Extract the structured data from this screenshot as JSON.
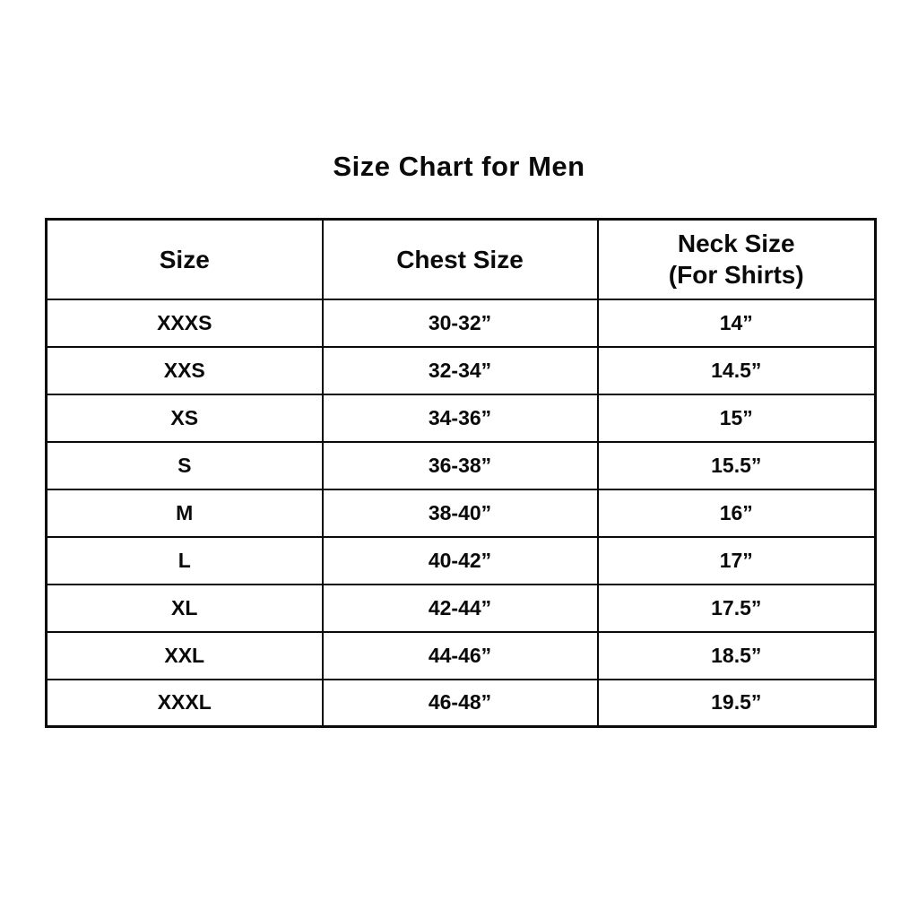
{
  "title": "Size Chart for Men",
  "table": {
    "headers": [
      {
        "label": "Size",
        "sublabel": ""
      },
      {
        "label": "Chest Size",
        "sublabel": ""
      },
      {
        "label": "Neck Size",
        "sublabel": "(For Shirts)"
      }
    ],
    "rows": [
      [
        "XXXS",
        "30-32”",
        "14”"
      ],
      [
        "XXS",
        "32-34”",
        "14.5”"
      ],
      [
        "XS",
        "34-36”",
        "15”"
      ],
      [
        "S",
        "36-38”",
        "15.5”"
      ],
      [
        "M",
        "38-40”",
        "16”"
      ],
      [
        "L",
        "40-42”",
        "17”"
      ],
      [
        "XL",
        "42-44”",
        "17.5”"
      ],
      [
        "XXL",
        "44-46”",
        "18.5”"
      ],
      [
        "XXXL",
        "46-48”",
        "19.5”"
      ]
    ]
  },
  "chart_data": {
    "type": "table",
    "title": "Size Chart for Men",
    "columns": [
      "Size",
      "Chest Size",
      "Neck Size (For Shirts)"
    ],
    "rows": [
      {
        "size": "XXXS",
        "chest_size": "30-32”",
        "neck_size": "14”"
      },
      {
        "size": "XXS",
        "chest_size": "32-34”",
        "neck_size": "14.5”"
      },
      {
        "size": "XS",
        "chest_size": "34-36”",
        "neck_size": "15”"
      },
      {
        "size": "S",
        "chest_size": "36-38”",
        "neck_size": "15.5”"
      },
      {
        "size": "M",
        "chest_size": "38-40”",
        "neck_size": "16”"
      },
      {
        "size": "L",
        "chest_size": "40-42”",
        "neck_size": "17”"
      },
      {
        "size": "XL",
        "chest_size": "42-44”",
        "neck_size": "17.5”"
      },
      {
        "size": "XXL",
        "chest_size": "44-46”",
        "neck_size": "18.5”"
      },
      {
        "size": "XXXL",
        "chest_size": "46-48”",
        "neck_size": "19.5”"
      }
    ],
    "layout": {
      "text_color": "#000000",
      "border_color": "#000000",
      "background": "#ffffff",
      "grid": true
    }
  }
}
